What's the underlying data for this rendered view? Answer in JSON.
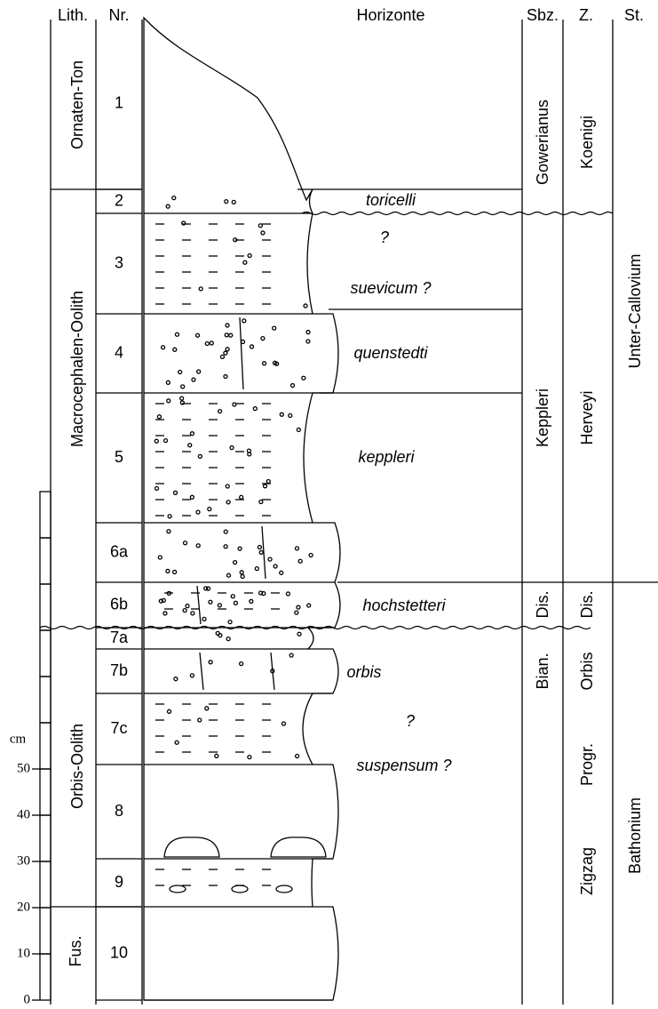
{
  "header": {
    "lith": "Lith.",
    "nr": "Nr.",
    "horizonte": "Horizonte",
    "sbz": "Sbz.",
    "z": "Z.",
    "st": "St."
  },
  "lithology": [
    "Ornaten-Ton",
    "Macrocephalen-Oolith",
    "Orbis-Oolith",
    "Fus."
  ],
  "layers": [
    "1",
    "2",
    "3",
    "4",
    "5",
    "6a",
    "6b",
    "7a",
    "7b",
    "7c",
    "8",
    "9",
    "10"
  ],
  "horizons": [
    "toricelli",
    "?",
    "suevicum ?",
    "quenstedti",
    "keppleri",
    "hochstetteri",
    "orbis",
    "?",
    "suspensum ?"
  ],
  "subzones": [
    "Gowerianus",
    "Keppleri",
    "Dis.",
    "Bian."
  ],
  "zones": [
    "Koenigi",
    "Herveyi",
    "Dis.",
    "Orbis",
    "Progr.",
    "Zigzag"
  ],
  "stages": [
    "Unter-Callovium",
    "Bathonium"
  ],
  "scale": {
    "unit": "cm",
    "labels": [
      50,
      40,
      30,
      20,
      10,
      0
    ]
  }
}
